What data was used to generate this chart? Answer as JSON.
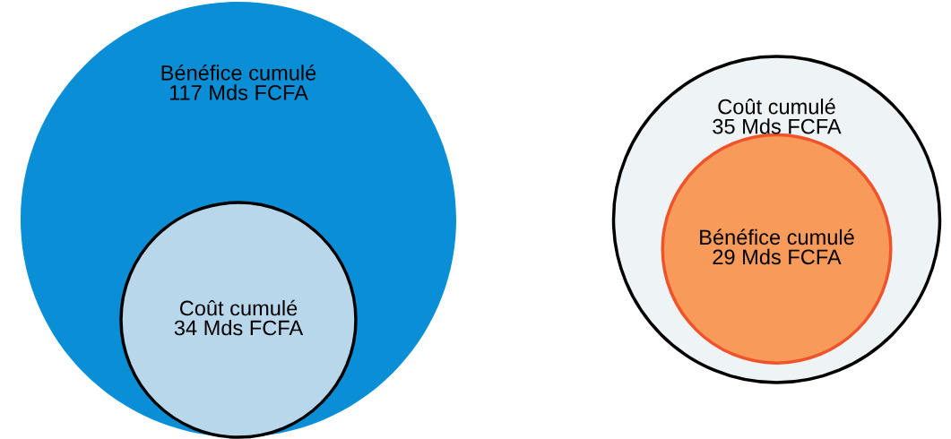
{
  "chart_data": [
    {
      "type": "other",
      "categories": [
        "Bénéfice cumulé",
        "Coût cumulé"
      ],
      "values": [
        117,
        34
      ],
      "colors": [
        "#0a8fd6",
        "#b9d7ea"
      ],
      "value_labels": [
        "117 Mds FCFA",
        "34 Mds FCFA"
      ]
    },
    {
      "type": "other",
      "categories": [
        "Coût cumulé",
        "Bénéfice cumulé"
      ],
      "values": [
        35,
        29
      ],
      "colors": [
        "#eef3f6",
        "#f79a5a"
      ],
      "value_labels": [
        "35 Mds FCFA",
        "29 Mds FCFA"
      ]
    }
  ]
}
